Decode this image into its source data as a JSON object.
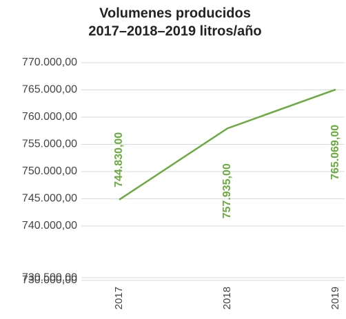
{
  "chart_data": {
    "type": "line",
    "title": [
      "Volumenes producidos",
      "2017–2018–2019 litros/año"
    ],
    "categories": [
      "2017",
      "2018",
      "2019"
    ],
    "series": [
      {
        "name": "Volumen",
        "color": "#6aab3f",
        "values": [
          744830,
          757935,
          765069
        ],
        "value_labels": [
          "744.830,00",
          "757.935,00",
          "765.069,00"
        ]
      }
    ],
    "ylim": [
      730000,
      770000
    ],
    "yticks": [
      {
        "value": 770000,
        "label": "770.000,00"
      },
      {
        "value": 765000,
        "label": "765.000,00"
      },
      {
        "value": 760000,
        "label": "760.000,00"
      },
      {
        "value": 755000,
        "label": "755.000,00"
      },
      {
        "value": 750000,
        "label": "750.000,00"
      },
      {
        "value": 745000,
        "label": "745.000,00"
      },
      {
        "value": 740000,
        "label": "740.000,00"
      },
      {
        "value": 730500,
        "label": "730.500,00"
      },
      {
        "value": 730000,
        "label": "730.000,00"
      }
    ],
    "grid": true
  }
}
